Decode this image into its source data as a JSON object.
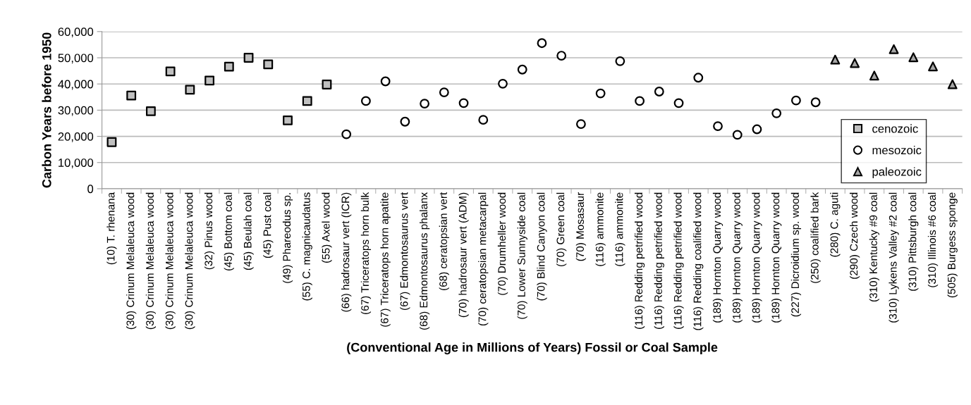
{
  "chart_data": {
    "type": "scatter",
    "xlabel": "(Conventional Age in Millions of Years) Fossil or Coal Sample",
    "ylabel": "Carbon Years before 1950",
    "categories": [
      "(10) T. rhenana",
      "(30) Crinum Melaleuca wood",
      "(30) Crinum Melaleuca wood",
      "(30) Crinum Melaleuca wood",
      "(30) Crinum Melaleuca wood",
      "(32) Pinus wood",
      "(45) Bottom coal",
      "(45) Beulah coal",
      "(45) Pust coal",
      "(49) Phareodus sp.",
      "(55) C. magnicaudatus",
      "(55) Axel wood",
      "(66) hadrosaur vert (ICR)",
      "(67) Triceratops horn bulk",
      "(67) Triceratops horn apatite",
      "(67) Edmontosaurus vert",
      "(68) Edmontosaurus phalanx",
      "(68) ceratopsian vert",
      "(70) hadrosaur vert (ADM)",
      "(70) ceratopsian metacarpal",
      "(70) Drumheller wood",
      "(70) Lower Sunnyside coal",
      "(70) Blind Canyon coal",
      "(70) Green coal",
      "(70) Mosasaur",
      "(116) ammonite",
      "(116) ammonite",
      "(116) Redding petrified wood",
      "(116) Redding petrified wood",
      "(116) Redding petrified wood",
      "(116) Redding coalified wood",
      "(189) Hornton Quarry wood",
      "(189) Hornton Quarry wood",
      "(189) Hornton Quarry wood",
      "(189) Hornton Quarry wood",
      "(227) Dicroidium sp. wood",
      "(250) coalified bark",
      "(280) C. aguti",
      "(290) Czech wood",
      "(310) Kentucky #9 coal",
      "(310) Lykens Valley #2 coal",
      "(310) Pittsburgh coal",
      "(310) Illinois #6 coal",
      "(505) Burgess sponge"
    ],
    "series": [
      {
        "name": "cenozoic",
        "color": "#c0c0c0",
        "marker": "square",
        "values": [
          17800,
          35600,
          29600,
          44800,
          37800,
          41300,
          46600,
          50000,
          47500,
          26100,
          33500,
          39800,
          null,
          null,
          null,
          null,
          null,
          null,
          null,
          null,
          null,
          null,
          null,
          null,
          null,
          null,
          null,
          null,
          null,
          null,
          null,
          null,
          null,
          null,
          null,
          null,
          null,
          null,
          null,
          null,
          null,
          null,
          null,
          null
        ]
      },
      {
        "name": "mesozoic",
        "color": "#ffffff",
        "marker": "circle",
        "values": [
          null,
          null,
          null,
          null,
          null,
          null,
          null,
          null,
          null,
          null,
          null,
          null,
          20800,
          33500,
          41000,
          25600,
          32500,
          36800,
          32700,
          26300,
          40100,
          45500,
          55600,
          50800,
          24700,
          36400,
          48700,
          33500,
          37100,
          32700,
          42400,
          23900,
          20600,
          22700,
          28800,
          33700,
          33000,
          null,
          null,
          null,
          null,
          null,
          null,
          null
        ]
      },
      {
        "name": "paleozoic",
        "color": "#a6a6a6",
        "marker": "triangle",
        "values": [
          null,
          null,
          null,
          null,
          null,
          null,
          null,
          null,
          null,
          null,
          null,
          null,
          null,
          null,
          null,
          null,
          null,
          null,
          null,
          null,
          null,
          null,
          null,
          null,
          null,
          null,
          null,
          null,
          null,
          null,
          null,
          null,
          null,
          null,
          null,
          null,
          null,
          49300,
          48000,
          43200,
          53300,
          50200,
          46700,
          39900
        ]
      }
    ],
    "ylim": [
      0,
      60000
    ],
    "yticks": [
      {
        "value": 0,
        "label": "0"
      },
      {
        "value": 10000,
        "label": "10,000"
      },
      {
        "value": 20000,
        "label": "20,000"
      },
      {
        "value": 30000,
        "label": "30,000"
      },
      {
        "value": 40000,
        "label": "40,000"
      },
      {
        "value": 50000,
        "label": "50,000"
      },
      {
        "value": 60000,
        "label": "60,000"
      }
    ],
    "grid": "y",
    "legend": "lower right"
  }
}
